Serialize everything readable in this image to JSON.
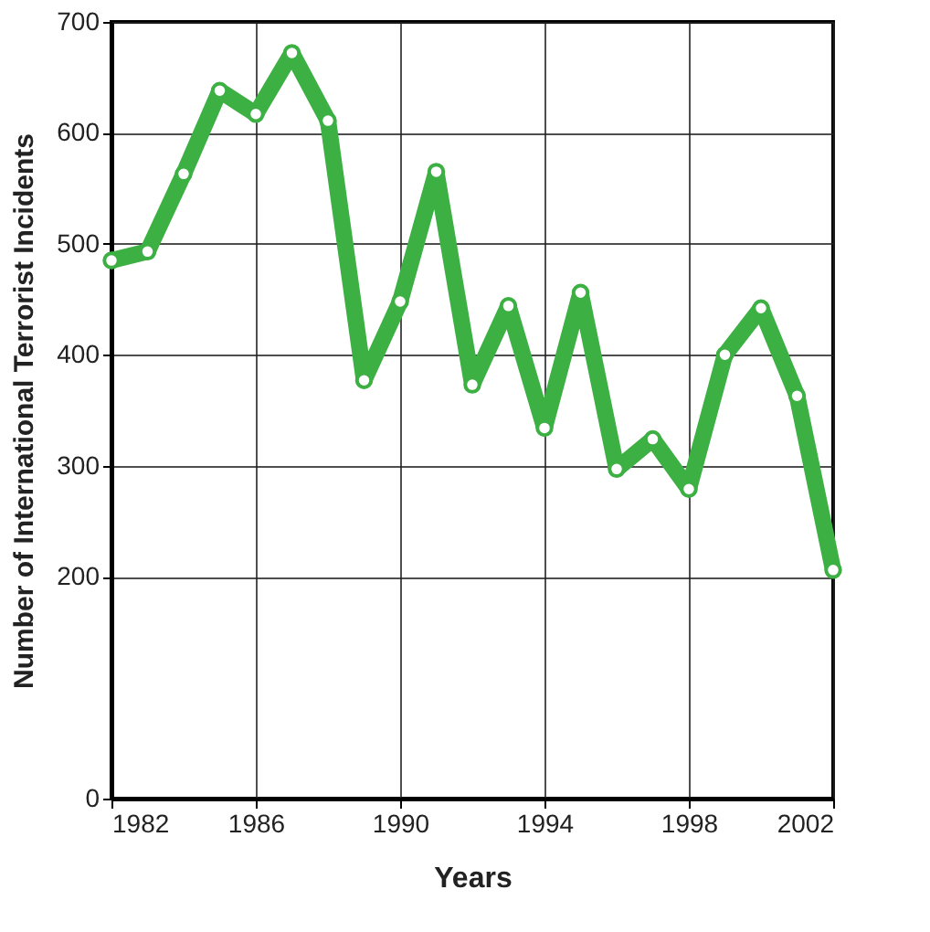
{
  "chart_data": {
    "type": "line",
    "xlabel": "Years",
    "ylabel": "Number of International Terrorist Incidents",
    "x": [
      1982,
      1983,
      1984,
      1985,
      1986,
      1987,
      1988,
      1989,
      1990,
      1991,
      1992,
      1993,
      1994,
      1995,
      1996,
      1997,
      1998,
      1999,
      2000,
      2001,
      2002
    ],
    "series": [
      {
        "color": "#3cb043",
        "values": [
          485,
          493,
          563,
          638,
          617,
          672,
          611,
          377,
          448,
          565,
          373,
          444,
          334,
          456,
          297,
          324,
          279,
          400,
          442,
          363,
          206
        ]
      }
    ],
    "xlim": [
      1982,
      2002
    ],
    "xticks": [
      1982,
      1986,
      1990,
      1994,
      1998,
      2002
    ],
    "ylim": [
      0,
      700
    ],
    "yticks": [
      0,
      200,
      300,
      400,
      500,
      600,
      700
    ],
    "grid": true,
    "marker": "circle",
    "line_style": "solid"
  }
}
